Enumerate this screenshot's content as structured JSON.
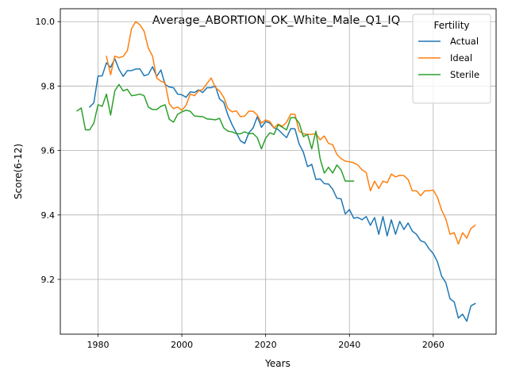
{
  "chart_data": {
    "type": "line",
    "title": "Average_ABORTION_OK_White_Male_Q1_IQ",
    "xlabel": "Years",
    "ylabel": "Score(6-12)",
    "xlim": [
      1971,
      2075
    ],
    "ylim": [
      9.03,
      10.04
    ],
    "xticks": [
      1980,
      2000,
      2020,
      2040,
      2060
    ],
    "xtick_labels": [
      "1980",
      "2000",
      "2020",
      "2040",
      "2060"
    ],
    "yticks": [
      9.2,
      9.4,
      9.6,
      9.8,
      10.0
    ],
    "ytick_labels": [
      "9.2",
      "9.4",
      "9.6",
      "9.8",
      "10.0"
    ],
    "grid": true,
    "legend": {
      "title": "Fertility",
      "placement": "top-right"
    },
    "series": [
      {
        "name": "Actual",
        "color": "#1f77b4",
        "x": [
          1978,
          1979,
          1980,
          1981,
          1982,
          1983,
          1984,
          1985,
          1986,
          1987,
          1988,
          1989,
          1990,
          1991,
          1992,
          1993,
          1994,
          1995,
          1996,
          1997,
          1998,
          1999,
          2000,
          2001,
          2002,
          2003,
          2004,
          2005,
          2006,
          2007,
          2008,
          2009,
          2010,
          2011,
          2012,
          2013,
          2014,
          2015,
          2016,
          2017,
          2018,
          2019,
          2020,
          2021,
          2022,
          2023,
          2024,
          2025,
          2026,
          2027,
          2028,
          2029,
          2030,
          2031,
          2032,
          2033,
          2034,
          2035,
          2036,
          2037,
          2038,
          2039,
          2040,
          2041,
          2042,
          2043,
          2044,
          2045,
          2046,
          2047,
          2048,
          2049,
          2050,
          2051,
          2052,
          2053,
          2054,
          2055,
          2056,
          2057,
          2058,
          2059,
          2060,
          2061,
          2062,
          2063,
          2064,
          2065,
          2066,
          2067,
          2068,
          2069,
          2070
        ],
        "values": [
          9.735,
          9.748,
          9.831,
          9.832,
          9.872,
          9.858,
          9.885,
          9.852,
          9.83,
          9.848,
          9.848,
          9.853,
          9.853,
          9.832,
          9.836,
          9.86,
          9.83,
          9.85,
          9.805,
          9.797,
          9.795,
          9.775,
          9.773,
          9.765,
          9.782,
          9.78,
          9.788,
          9.78,
          9.795,
          9.795,
          9.8,
          9.76,
          9.75,
          9.71,
          9.68,
          9.655,
          9.63,
          9.622,
          9.655,
          9.67,
          9.705,
          9.672,
          9.69,
          9.685,
          9.67,
          9.665,
          9.652,
          9.64,
          9.668,
          9.667,
          9.62,
          9.595,
          9.55,
          9.557,
          9.51,
          9.512,
          9.497,
          9.496,
          9.48,
          9.452,
          9.45,
          9.403,
          9.417,
          9.39,
          9.392,
          9.385,
          9.395,
          9.368,
          9.392,
          9.34,
          9.395,
          9.335,
          9.385,
          9.34,
          9.38,
          9.355,
          9.375,
          9.35,
          9.34,
          9.32,
          9.315,
          9.295,
          9.28,
          9.255,
          9.21,
          9.19,
          9.14,
          9.13,
          9.08,
          9.092,
          9.07,
          9.118,
          9.125
        ]
      },
      {
        "name": "Ideal",
        "color": "#ff7f0e",
        "x": [
          1982,
          1983,
          1984,
          1985,
          1986,
          1987,
          1988,
          1989,
          1990,
          1991,
          1992,
          1993,
          1994,
          1995,
          1996,
          1997,
          1998,
          1999,
          2000,
          2001,
          2002,
          2003,
          2004,
          2005,
          2006,
          2007,
          2008,
          2009,
          2010,
          2011,
          2012,
          2013,
          2014,
          2015,
          2016,
          2017,
          2018,
          2019,
          2020,
          2021,
          2022,
          2023,
          2024,
          2025,
          2026,
          2027,
          2028,
          2029,
          2030,
          2031,
          2032,
          2033,
          2034,
          2035,
          2036,
          2037,
          2038,
          2039,
          2040,
          2041,
          2042,
          2043,
          2044,
          2045,
          2046,
          2047,
          2048,
          2049,
          2050,
          2051,
          2052,
          2053,
          2054,
          2055,
          2056,
          2057,
          2058,
          2059,
          2060,
          2061,
          2062,
          2063,
          2064,
          2065,
          2066,
          2067,
          2068,
          2069,
          2070
        ],
        "values": [
          9.892,
          9.835,
          9.893,
          9.888,
          9.892,
          9.91,
          9.978,
          10.0,
          9.99,
          9.97,
          9.918,
          9.893,
          9.825,
          9.815,
          9.81,
          9.745,
          9.73,
          9.735,
          9.725,
          9.74,
          9.775,
          9.77,
          9.785,
          9.79,
          9.808,
          9.825,
          9.795,
          9.785,
          9.765,
          9.73,
          9.72,
          9.723,
          9.705,
          9.707,
          9.722,
          9.722,
          9.71,
          9.685,
          9.695,
          9.69,
          9.67,
          9.682,
          9.675,
          9.688,
          9.713,
          9.712,
          9.66,
          9.652,
          9.65,
          9.65,
          9.653,
          9.633,
          9.645,
          9.622,
          9.618,
          9.588,
          9.575,
          9.567,
          9.565,
          9.562,
          9.555,
          9.54,
          9.532,
          9.475,
          9.505,
          9.482,
          9.505,
          9.5,
          9.527,
          9.518,
          9.523,
          9.522,
          9.51,
          9.475,
          9.475,
          9.46,
          9.475,
          9.475,
          9.477,
          9.455,
          9.415,
          9.388,
          9.34,
          9.345,
          9.31,
          9.345,
          9.328,
          9.358,
          9.368
        ]
      },
      {
        "name": "Sterile",
        "color": "#2ca02c",
        "x": [
          1975,
          1976,
          1977,
          1978,
          1979,
          1980,
          1981,
          1982,
          1983,
          1984,
          1985,
          1986,
          1987,
          1988,
          1989,
          1990,
          1991,
          1992,
          1993,
          1994,
          1995,
          1996,
          1997,
          1998,
          1999,
          2000,
          2001,
          2002,
          2003,
          2004,
          2005,
          2006,
          2007,
          2008,
          2009,
          2010,
          2011,
          2012,
          2013,
          2014,
          2015,
          2016,
          2017,
          2018,
          2019,
          2020,
          2021,
          2022,
          2023,
          2024,
          2025,
          2026,
          2027,
          2028,
          2029,
          2030,
          2031,
          2032,
          2033,
          2034,
          2035,
          2036,
          2037,
          2038,
          2039,
          2040,
          2041
        ],
        "values": [
          9.723,
          9.732,
          9.664,
          9.664,
          9.685,
          9.742,
          9.737,
          9.775,
          9.71,
          9.785,
          9.805,
          9.785,
          9.79,
          9.77,
          9.772,
          9.775,
          9.77,
          9.735,
          9.727,
          9.727,
          9.737,
          9.742,
          9.697,
          9.688,
          9.712,
          9.72,
          9.725,
          9.722,
          9.707,
          9.706,
          9.705,
          9.698,
          9.697,
          9.695,
          9.7,
          9.67,
          9.66,
          9.658,
          9.652,
          9.652,
          9.658,
          9.652,
          9.653,
          9.64,
          9.605,
          9.638,
          9.655,
          9.65,
          9.68,
          9.672,
          9.664,
          9.702,
          9.702,
          9.685,
          9.643,
          9.65,
          9.605,
          9.66,
          9.575,
          9.53,
          9.548,
          9.53,
          9.555,
          9.54,
          9.505,
          9.505,
          9.505
        ]
      }
    ]
  }
}
